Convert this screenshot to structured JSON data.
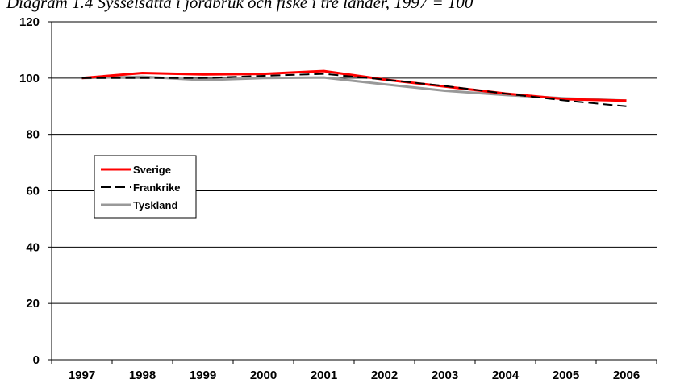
{
  "caption": "Diagram 1.4 Sysselsatta i jordbruk och fiske i tre länder, 1997 = 100",
  "chart_data": {
    "type": "line",
    "title": "",
    "xlabel": "",
    "ylabel": "",
    "x": [
      "1997",
      "1998",
      "1999",
      "2000",
      "2001",
      "2002",
      "2003",
      "2004",
      "2005",
      "2006"
    ],
    "ylim": [
      0,
      120
    ],
    "yticks": [
      "0",
      "20",
      "40",
      "60",
      "80",
      "100",
      "120"
    ],
    "grid": true,
    "legend_position": "left-middle",
    "series": [
      {
        "name": "Sverige",
        "color": "#ff0000",
        "style": "solid",
        "values": [
          100,
          101.8,
          101.3,
          101.5,
          102.5,
          99.5,
          97,
          94.5,
          92.5,
          92
        ]
      },
      {
        "name": "Frankrike",
        "color": "#000000",
        "style": "dashed",
        "values": [
          100,
          100,
          100,
          100.8,
          101.5,
          99.5,
          97.2,
          94.5,
          92,
          90
        ]
      },
      {
        "name": "Tyskland",
        "color": "#999999",
        "style": "solid",
        "values": [
          100,
          100.5,
          99.3,
          100,
          100.2,
          97.8,
          95.5,
          94,
          92.8,
          92
        ]
      }
    ]
  }
}
